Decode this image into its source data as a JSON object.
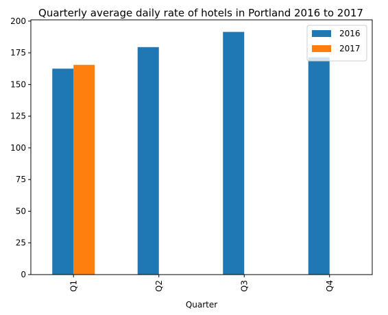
{
  "chart_data": {
    "type": "bar",
    "title": "Quarterly average daily rate of hotels in Portland 2016 to 2017",
    "xlabel": "Quarter",
    "ylabel": "",
    "categories": [
      "Q1",
      "Q2",
      "Q3",
      "Q4"
    ],
    "series": [
      {
        "name": "2016",
        "color": "#1f77b4",
        "values": [
          162.5,
          179.5,
          191.5,
          171.5
        ]
      },
      {
        "name": "2017",
        "color": "#ff7f0e",
        "values": [
          165.5,
          null,
          null,
          null
        ]
      }
    ],
    "ylim": [
      0,
      201
    ],
    "yticks": [
      0,
      25,
      50,
      75,
      100,
      125,
      150,
      175,
      200
    ],
    "grid": false,
    "legend_position": "top-right"
  }
}
